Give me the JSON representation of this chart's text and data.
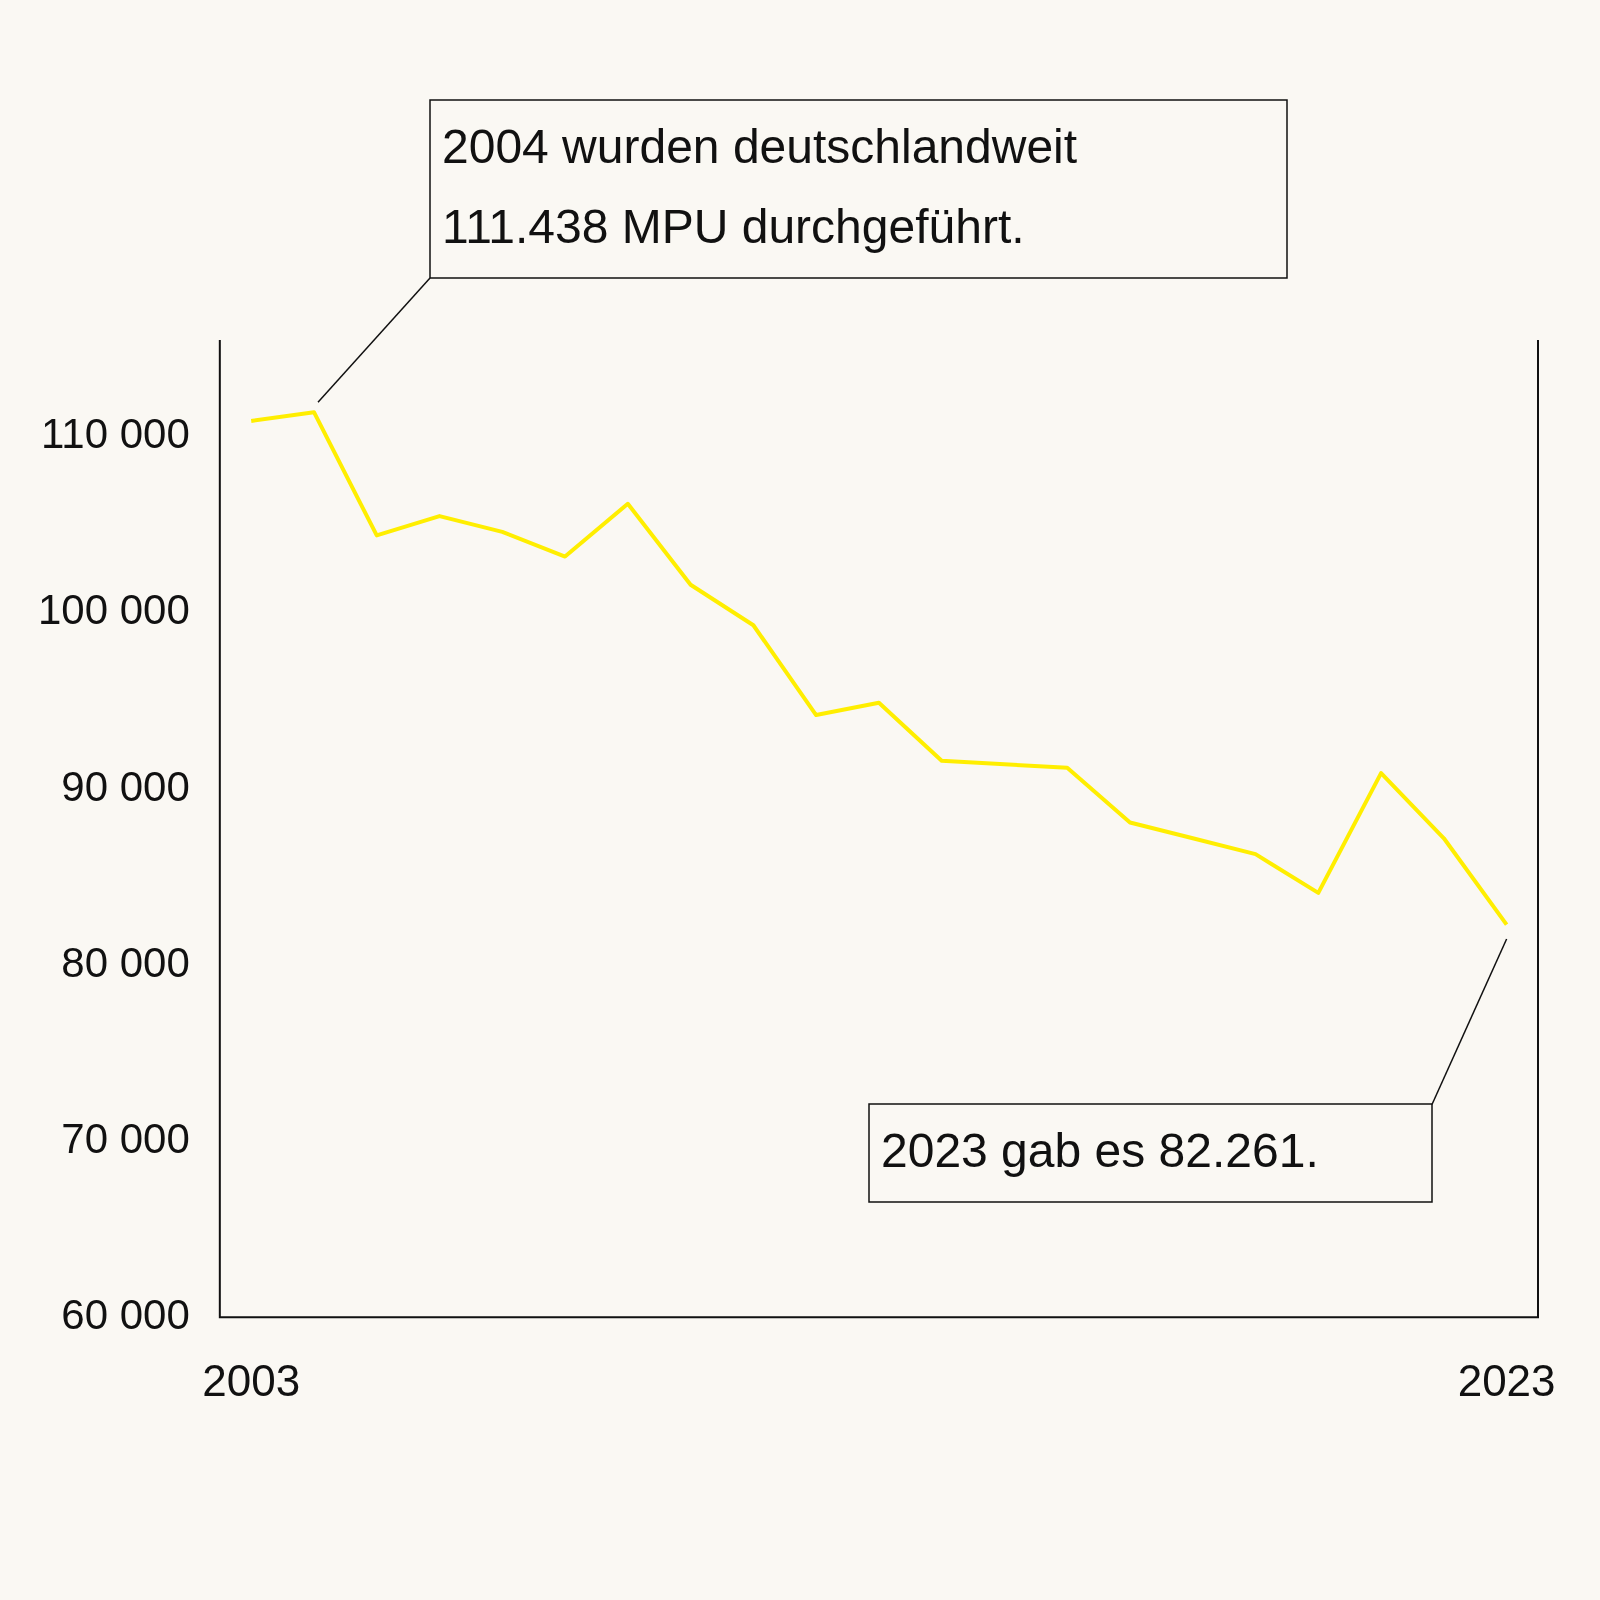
{
  "chart_data": {
    "type": "line",
    "categories": [
      "2003",
      null,
      null,
      null,
      null,
      null,
      null,
      null,
      null,
      null,
      null,
      null,
      null,
      null,
      null,
      null,
      null,
      null,
      null,
      null,
      "2023"
    ],
    "series": [
      {
        "color": "#ffee00",
        "values": [
          110900,
          111400,
          104400,
          105500,
          104600,
          103200,
          106200,
          101600,
          99300,
          94200,
          94900,
          91600,
          91400,
          91200,
          88100,
          87200,
          86300,
          84100,
          90900,
          87200,
          82300
        ]
      }
    ],
    "ylim": [
      60000,
      115500
    ],
    "yticks": [
      {
        "value": 60000,
        "label": "60 000"
      },
      {
        "value": 70000,
        "label": "70 000"
      },
      {
        "value": 80000,
        "label": "80 000"
      },
      {
        "value": 90000,
        "label": "90 000"
      },
      {
        "value": 100000,
        "label": "100 000"
      },
      {
        "value": 110000,
        "label": "110 000"
      }
    ],
    "grid": false,
    "legend": false,
    "marker": "none",
    "line_style": "solid",
    "annotations": [
      "2004 wurden deutschlandweit 111.438 MPU durchgeführt.",
      "2023 gab es 82.261."
    ]
  }
}
